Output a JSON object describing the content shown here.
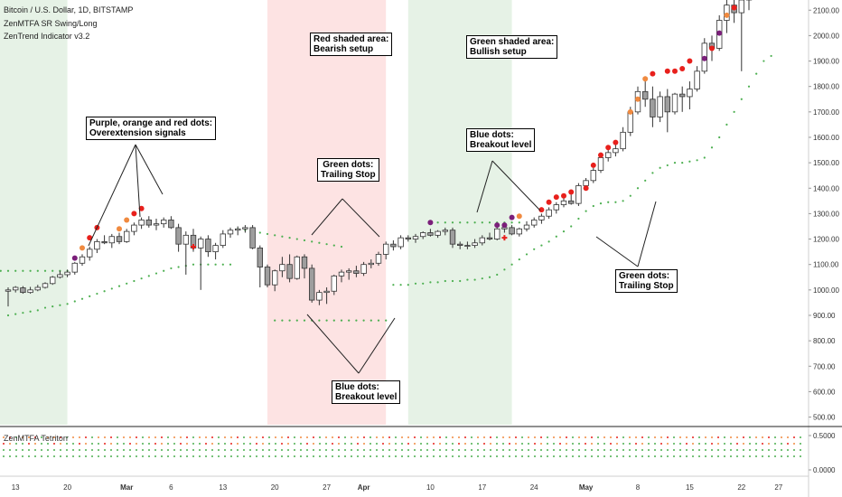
{
  "header": {
    "line1": "Bitcoin / U.S. Dollar, 1D, BITSTAMP",
    "line2": "ZenMTFA SR Swing/Long",
    "line3": "ZenTrend Indicator v3.2"
  },
  "annotations": {
    "overextension": [
      "Purple, orange and red dots:",
      "Overextension signals"
    ],
    "bearish": [
      "Red shaded area:",
      "Bearish setup"
    ],
    "bullish": [
      "Green shaded area:",
      "Bullish setup"
    ],
    "trailing_left": [
      "Green dots:",
      "Trailing Stop"
    ],
    "breakout_right": [
      "Blue dots:",
      "Breakout level"
    ],
    "breakout_bottom": [
      "Blue dots:",
      "Breakout level"
    ],
    "trailing_right": [
      "Green dots:",
      "Trailing Stop"
    ]
  },
  "indicator_panel": {
    "label": "ZenMTFA Tetritorr",
    "y_ticks": [
      "0.5000",
      "0.0000"
    ]
  },
  "colors": {
    "candle_up": "#ffffff",
    "candle_down": "#9e9e9e",
    "bull_zone": "#e6f2e6",
    "bear_zone": "#fde3e3",
    "trailing_dot": "#4caf50",
    "breakout_dot": "#4caf50",
    "purple": "#7b1f7a",
    "orange": "#f08a40",
    "red": "#e8201c"
  },
  "chart_data": {
    "type": "candlestick",
    "title": "Bitcoin / U.S. Dollar, 1D, BITSTAMP",
    "price_axis": {
      "ticks": [
        2100,
        2000,
        1900,
        1800,
        1700,
        1600,
        1500,
        1400,
        1300,
        1200,
        1100,
        1000,
        900,
        800,
        700,
        600,
        500
      ],
      "tick_labels": [
        "2100.00",
        "2000.00",
        "1900.00",
        "1800.00",
        "1700.00",
        "1600.00",
        "1500.00",
        "1400.00",
        "1300.00",
        "1200.00",
        "1100.00",
        "1000.00",
        "900.00",
        "800.00",
        "700.00",
        "600.00",
        "500.00"
      ],
      "range": [
        470,
        2140
      ]
    },
    "x_axis": {
      "labels": [
        "13",
        "20",
        "Mar",
        "6",
        "13",
        "20",
        "27",
        "Apr",
        "10",
        "17",
        "24",
        "May",
        "8",
        "15",
        "22",
        "27"
      ],
      "label_bar_index": [
        1,
        8,
        16,
        22,
        29,
        36,
        43,
        48,
        57,
        64,
        71,
        78,
        85,
        92,
        99,
        104
      ]
    },
    "shaded_zones": [
      {
        "type": "bull",
        "from_bar": -3,
        "to_bar": 8
      },
      {
        "type": "bear",
        "from_bar": 35,
        "to_bar": 51
      },
      {
        "type": "bull",
        "from_bar": 54,
        "to_bar": 68
      }
    ],
    "candles": [
      [
        995,
        1010,
        935,
        1000
      ],
      [
        1000,
        1015,
        990,
        1010
      ],
      [
        1008,
        1015,
        985,
        990
      ],
      [
        990,
        1012,
        985,
        1000
      ],
      [
        1000,
        1020,
        995,
        1010
      ],
      [
        1010,
        1030,
        1005,
        1025
      ],
      [
        1025,
        1055,
        1020,
        1050
      ],
      [
        1050,
        1075,
        1045,
        1060
      ],
      [
        1060,
        1080,
        1050,
        1070
      ],
      [
        1070,
        1110,
        1060,
        1105
      ],
      [
        1105,
        1140,
        1095,
        1130
      ],
      [
        1130,
        1170,
        1115,
        1160
      ],
      [
        1160,
        1200,
        1145,
        1190
      ],
      [
        1190,
        1215,
        1180,
        1185
      ],
      [
        1185,
        1220,
        1165,
        1210
      ],
      [
        1210,
        1225,
        1180,
        1190
      ],
      [
        1190,
        1240,
        1185,
        1230
      ],
      [
        1230,
        1265,
        1215,
        1255
      ],
      [
        1255,
        1285,
        1240,
        1275
      ],
      [
        1275,
        1290,
        1245,
        1255
      ],
      [
        1255,
        1280,
        1235,
        1260
      ],
      [
        1260,
        1285,
        1245,
        1275
      ],
      [
        1275,
        1290,
        1240,
        1245
      ],
      [
        1245,
        1260,
        1150,
        1180
      ],
      [
        1180,
        1230,
        1060,
        1215
      ],
      [
        1215,
        1240,
        1150,
        1165
      ],
      [
        1165,
        1210,
        1000,
        1200
      ],
      [
        1200,
        1215,
        1130,
        1150
      ],
      [
        1150,
        1185,
        1120,
        1175
      ],
      [
        1175,
        1235,
        1165,
        1220
      ],
      [
        1220,
        1245,
        1205,
        1235
      ],
      [
        1235,
        1250,
        1215,
        1240
      ],
      [
        1240,
        1255,
        1225,
        1245
      ],
      [
        1245,
        1255,
        1160,
        1165
      ],
      [
        1165,
        1175,
        1010,
        1090
      ],
      [
        1090,
        1100,
        1010,
        1020
      ],
      [
        1020,
        1080,
        995,
        1075
      ],
      [
        1075,
        1130,
        1050,
        1100
      ],
      [
        1100,
        1140,
        1030,
        1045
      ],
      [
        1045,
        1135,
        1040,
        1130
      ],
      [
        1130,
        1140,
        1045,
        1085
      ],
      [
        1085,
        1100,
        950,
        960
      ],
      [
        960,
        1000,
        940,
        990
      ],
      [
        990,
        1010,
        945,
        995
      ],
      [
        995,
        1060,
        980,
        1055
      ],
      [
        1055,
        1080,
        1030,
        1070
      ],
      [
        1070,
        1085,
        1040,
        1075
      ],
      [
        1075,
        1095,
        1050,
        1065
      ],
      [
        1065,
        1110,
        1055,
        1100
      ],
      [
        1100,
        1120,
        1085,
        1105
      ],
      [
        1105,
        1150,
        1095,
        1140
      ],
      [
        1140,
        1190,
        1120,
        1180
      ],
      [
        1180,
        1195,
        1155,
        1170
      ],
      [
        1170,
        1215,
        1160,
        1205
      ],
      [
        1205,
        1215,
        1190,
        1200
      ],
      [
        1200,
        1220,
        1185,
        1210
      ],
      [
        1210,
        1230,
        1200,
        1225
      ],
      [
        1225,
        1240,
        1210,
        1215
      ],
      [
        1215,
        1235,
        1205,
        1230
      ],
      [
        1230,
        1245,
        1215,
        1235
      ],
      [
        1235,
        1245,
        1165,
        1180
      ],
      [
        1180,
        1190,
        1160,
        1175
      ],
      [
        1175,
        1190,
        1160,
        1175
      ],
      [
        1175,
        1200,
        1165,
        1185
      ],
      [
        1185,
        1215,
        1175,
        1205
      ],
      [
        1205,
        1225,
        1195,
        1200
      ],
      [
        1200,
        1245,
        1195,
        1240
      ],
      [
        1240,
        1255,
        1225,
        1245
      ],
      [
        1245,
        1255,
        1215,
        1220
      ],
      [
        1220,
        1245,
        1210,
        1240
      ],
      [
        1240,
        1270,
        1230,
        1255
      ],
      [
        1255,
        1285,
        1245,
        1275
      ],
      [
        1275,
        1300,
        1260,
        1290
      ],
      [
        1290,
        1325,
        1280,
        1315
      ],
      [
        1315,
        1345,
        1300,
        1335
      ],
      [
        1335,
        1360,
        1325,
        1350
      ],
      [
        1350,
        1375,
        1335,
        1340
      ],
      [
        1340,
        1420,
        1330,
        1410
      ],
      [
        1410,
        1440,
        1395,
        1430
      ],
      [
        1430,
        1480,
        1420,
        1470
      ],
      [
        1470,
        1540,
        1460,
        1520
      ],
      [
        1520,
        1560,
        1505,
        1540
      ],
      [
        1540,
        1575,
        1525,
        1555
      ],
      [
        1555,
        1640,
        1545,
        1620
      ],
      [
        1620,
        1720,
        1605,
        1700
      ],
      [
        1700,
        1800,
        1690,
        1780
      ],
      [
        1780,
        1840,
        1720,
        1750
      ],
      [
        1750,
        1800,
        1640,
        1680
      ],
      [
        1680,
        1780,
        1660,
        1760
      ],
      [
        1760,
        1790,
        1620,
        1700
      ],
      [
        1700,
        1775,
        1690,
        1770
      ],
      [
        1770,
        1800,
        1700,
        1760
      ],
      [
        1760,
        1820,
        1710,
        1790
      ],
      [
        1790,
        1880,
        1780,
        1860
      ],
      [
        1860,
        1990,
        1850,
        1970
      ],
      [
        1970,
        2000,
        1900,
        1950
      ],
      [
        1950,
        2080,
        1940,
        2060
      ],
      [
        2060,
        2150,
        2010,
        2120
      ],
      [
        2120,
        2140,
        2050,
        2090
      ],
      [
        2090,
        2140,
        1860,
        2140
      ],
      [
        2140,
        2180,
        2100,
        2170
      ]
    ],
    "trailing_stop": [
      [
        0,
        900
      ],
      [
        1,
        905
      ],
      [
        2,
        910
      ],
      [
        3,
        915
      ],
      [
        4,
        920
      ],
      [
        5,
        930
      ],
      [
        6,
        935
      ],
      [
        7,
        940
      ],
      [
        8,
        945
      ],
      [
        9,
        955
      ],
      [
        10,
        965
      ],
      [
        11,
        975
      ],
      [
        12,
        985
      ],
      [
        13,
        995
      ],
      [
        14,
        1005
      ],
      [
        15,
        1015
      ],
      [
        16,
        1025
      ],
      [
        17,
        1035
      ],
      [
        18,
        1045
      ],
      [
        19,
        1055
      ],
      [
        20,
        1065
      ],
      [
        21,
        1075
      ],
      [
        22,
        1085
      ],
      [
        23,
        1090
      ],
      [
        24,
        1095
      ],
      [
        25,
        1100
      ],
      [
        26,
        1100
      ],
      [
        27,
        1100
      ],
      [
        28,
        1100
      ],
      [
        29,
        1100
      ],
      [
        30,
        1100
      ],
      [
        31,
        1240
      ],
      [
        32,
        1235
      ],
      [
        33,
        1230
      ],
      [
        34,
        1225
      ],
      [
        35,
        1220
      ],
      [
        36,
        1215
      ],
      [
        37,
        1210
      ],
      [
        38,
        1205
      ],
      [
        39,
        1200
      ],
      [
        40,
        1195
      ],
      [
        41,
        1190
      ],
      [
        42,
        1185
      ],
      [
        43,
        1180
      ],
      [
        44,
        1175
      ],
      [
        45,
        1170
      ],
      [
        52,
        1020
      ],
      [
        53,
        1020
      ],
      [
        54,
        1020
      ],
      [
        55,
        1025
      ],
      [
        56,
        1025
      ],
      [
        57,
        1030
      ],
      [
        58,
        1030
      ],
      [
        59,
        1035
      ],
      [
        60,
        1035
      ],
      [
        61,
        1035
      ],
      [
        62,
        1040
      ],
      [
        63,
        1040
      ],
      [
        64,
        1045
      ],
      [
        65,
        1050
      ],
      [
        66,
        1060
      ],
      [
        67,
        1080
      ],
      [
        68,
        1100
      ],
      [
        69,
        1120
      ],
      [
        70,
        1140
      ],
      [
        71,
        1160
      ],
      [
        72,
        1175
      ],
      [
        73,
        1190
      ],
      [
        74,
        1210
      ],
      [
        75,
        1230
      ],
      [
        76,
        1250
      ],
      [
        77,
        1280
      ],
      [
        78,
        1310
      ],
      [
        79,
        1330
      ],
      [
        80,
        1340
      ],
      [
        81,
        1345
      ],
      [
        82,
        1345
      ],
      [
        83,
        1350
      ],
      [
        84,
        1370
      ],
      [
        85,
        1400
      ],
      [
        86,
        1430
      ],
      [
        87,
        1460
      ],
      [
        88,
        1480
      ],
      [
        89,
        1490
      ],
      [
        90,
        1500
      ],
      [
        91,
        1500
      ],
      [
        92,
        1505
      ],
      [
        93,
        1510
      ],
      [
        94,
        1520
      ],
      [
        95,
        1560
      ],
      [
        96,
        1600
      ],
      [
        97,
        1650
      ],
      [
        98,
        1700
      ],
      [
        99,
        1750
      ],
      [
        100,
        1800
      ],
      [
        101,
        1850
      ],
      [
        102,
        1900
      ],
      [
        103,
        1920
      ]
    ],
    "breakout_levels": [
      {
        "from_bar": -3,
        "to_bar": 8,
        "value": 1075
      },
      {
        "from_bar": 36,
        "to_bar": 51,
        "value": 880
      },
      {
        "from_bar": 57,
        "to_bar": 69,
        "value": 1265
      }
    ],
    "signal_dots": [
      {
        "bar": 9,
        "color": "purple",
        "value": 1125
      },
      {
        "bar": 10,
        "color": "orange",
        "value": 1165
      },
      {
        "bar": 11,
        "color": "red",
        "value": 1205
      },
      {
        "bar": 12,
        "color": "red",
        "value": 1245
      },
      {
        "bar": 15,
        "color": "orange",
        "value": 1240
      },
      {
        "bar": 16,
        "color": "orange",
        "value": 1275
      },
      {
        "bar": 17,
        "color": "red",
        "value": 1300
      },
      {
        "bar": 18,
        "color": "red",
        "value": 1320
      },
      {
        "bar": 57,
        "color": "purple",
        "value": 1265
      },
      {
        "bar": 66,
        "color": "purple",
        "value": 1255
      },
      {
        "bar": 67,
        "color": "purple",
        "value": 1255
      },
      {
        "bar": 68,
        "color": "purple",
        "value": 1285
      },
      {
        "bar": 69,
        "color": "orange",
        "value": 1290
      },
      {
        "bar": 72,
        "color": "red",
        "value": 1315
      },
      {
        "bar": 73,
        "color": "red",
        "value": 1345
      },
      {
        "bar": 74,
        "color": "red",
        "value": 1365
      },
      {
        "bar": 75,
        "color": "red",
        "value": 1370
      },
      {
        "bar": 76,
        "color": "red",
        "value": 1385
      },
      {
        "bar": 78,
        "color": "red",
        "value": 1400
      },
      {
        "bar": 79,
        "color": "red",
        "value": 1490
      },
      {
        "bar": 80,
        "color": "red",
        "value": 1530
      },
      {
        "bar": 81,
        "color": "red",
        "value": 1560
      },
      {
        "bar": 82,
        "color": "red",
        "value": 1580
      },
      {
        "bar": 84,
        "color": "orange",
        "value": 1700
      },
      {
        "bar": 85,
        "color": "orange",
        "value": 1750
      },
      {
        "bar": 86,
        "color": "orange",
        "value": 1830
      },
      {
        "bar": 87,
        "color": "red",
        "value": 1850
      },
      {
        "bar": 89,
        "color": "red",
        "value": 1860
      },
      {
        "bar": 90,
        "color": "red",
        "value": 1860
      },
      {
        "bar": 91,
        "color": "red",
        "value": 1870
      },
      {
        "bar": 92,
        "color": "red",
        "value": 1900
      },
      {
        "bar": 94,
        "color": "purple",
        "value": 1910
      },
      {
        "bar": 95,
        "color": "red",
        "value": 1950
      },
      {
        "bar": 96,
        "color": "purple",
        "value": 2010
      },
      {
        "bar": 97,
        "color": "orange",
        "value": 2080
      },
      {
        "bar": 98,
        "color": "red",
        "value": 2110
      }
    ],
    "cross_markers": [
      {
        "bar": 25,
        "value": 1170
      },
      {
        "bar": 67,
        "value": 1205
      }
    ],
    "indicator_rows": [
      {
        "value": 0.5,
        "colors": [
          "orange",
          "red",
          "green",
          "orange"
        ]
      },
      {
        "value": 0.35,
        "colors": [
          "red",
          "orange",
          "green",
          "green"
        ]
      },
      {
        "value": 0.2,
        "colors": [
          "green",
          "green",
          "green",
          "green"
        ]
      },
      {
        "value": 0.05,
        "colors": [
          "green",
          "green",
          "green",
          "green"
        ]
      }
    ]
  }
}
